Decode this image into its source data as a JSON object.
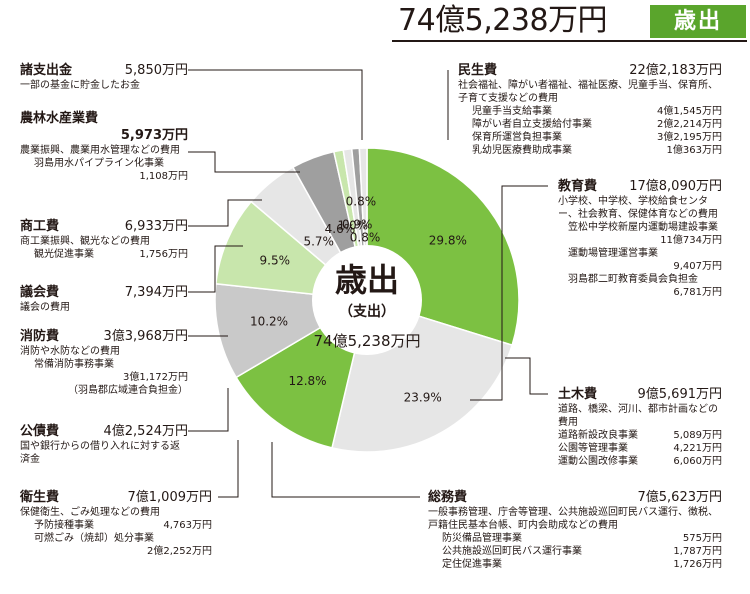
{
  "header": {
    "total": "74億5,238万円",
    "badge": "歳出"
  },
  "center": {
    "title": "歳出",
    "subtitle": "（支出）",
    "total": "74億5,238万円"
  },
  "colors": {
    "green_dark": "#7cc142",
    "green_light": "#c8e6ac",
    "gray_light": "#e6e6e6",
    "gray_mid": "#c9c9c9",
    "gray_dark": "#9f9f9f",
    "badge": "#5aa52c"
  },
  "chart_data": {
    "type": "pie",
    "slices": [
      {
        "name": "民生費",
        "percent": 29.8,
        "label": "29.8%",
        "color": "#7cc142"
      },
      {
        "name": "教育費",
        "percent": 23.9,
        "label": "23.9%",
        "color": "#e6e6e6"
      },
      {
        "name": "土木費",
        "percent": 12.8,
        "label": "12.8%",
        "color": "#7cc142"
      },
      {
        "name": "総務費",
        "percent": 10.2,
        "label": "10.2%",
        "color": "#c9c9c9"
      },
      {
        "name": "衛生費",
        "percent": 9.5,
        "label": "9.5%",
        "color": "#c8e6ac"
      },
      {
        "name": "公債費",
        "percent": 5.7,
        "label": "5.7%",
        "color": "#e6e6e6"
      },
      {
        "name": "消防費",
        "percent": 4.6,
        "label": "4.6%",
        "color": "#9f9f9f"
      },
      {
        "name": "議会費",
        "percent": 1.0,
        "label": "1.0%",
        "color": "#c8e6ac"
      },
      {
        "name": "商工費",
        "percent": 0.9,
        "label": "0.9%",
        "color": "#e6e6e6"
      },
      {
        "name": "農林水産業費",
        "percent": 0.8,
        "label": "0.8%",
        "color": "#9f9f9f"
      },
      {
        "name": "諸支出金",
        "percent": 0.8,
        "label": "0.8%",
        "color": "#e6e6e6"
      }
    ]
  },
  "left": {
    "shoshishutsu": {
      "name": "諸支出金",
      "amount": "5,850万円",
      "desc": "一部の基金に貯金したお金"
    },
    "norin": {
      "name": "農林水産業費",
      "amount": "5,973万円",
      "desc": "農業振興、農業用水管理などの費用",
      "subs": [
        {
          "name": "羽島用水パイプライン化事業",
          "amount": "1,108万円"
        }
      ]
    },
    "shoko": {
      "name": "商工費",
      "amount": "6,933万円",
      "desc": "商工業振興、観光などの費用",
      "subs": [
        {
          "name": "観光促進事業",
          "amount": "1,756万円"
        }
      ]
    },
    "gikai": {
      "name": "議会費",
      "amount": "7,394万円",
      "desc": "議会の費用"
    },
    "shobo": {
      "name": "消防費",
      "amount": "3億3,968万円",
      "desc": "消防や水防などの費用",
      "subs": [
        {
          "name": "常備消防事務事業",
          "amount": "3億1,172万円"
        },
        {
          "name": "（羽島郡広域連合負担金）",
          "amount": ""
        }
      ]
    },
    "kosai": {
      "name": "公債費",
      "amount": "4億2,524万円",
      "desc": "国や銀行からの借り入れに対する返済金"
    },
    "eisei": {
      "name": "衛生費",
      "amount": "7億1,009万円",
      "desc": "保健衛生、ごみ処理などの費用",
      "subs": [
        {
          "name": "予防接種事業",
          "amount": "4,763万円"
        },
        {
          "name": "可燃ごみ（焼却）処分事業",
          "amount": "2億2,252万円"
        }
      ]
    }
  },
  "right": {
    "minsei": {
      "name": "民生費",
      "amount": "22億2,183万円",
      "desc": "社会福祉、障がい者福祉、福祉医療、児童手当、保育所、子育て支援などの費用",
      "subs": [
        {
          "name": "児童手当支給事業",
          "amount": "4億1,545万円"
        },
        {
          "name": "障がい者自立支援給付事業",
          "amount": "2億2,214万円"
        },
        {
          "name": "保育所運営負担事業",
          "amount": "3億2,195万円"
        },
        {
          "name": "乳幼児医療費助成事業",
          "amount": "1億363万円"
        }
      ]
    },
    "kyoiku": {
      "name": "教育費",
      "amount": "17億8,090万円",
      "desc": "小学校、中学校、学校給食センター、社会教育、保健体育などの費用",
      "subs": [
        {
          "name": "笠松中学校新屋内運動場建設事業",
          "amount": "11億734万円"
        },
        {
          "name": "運動場管理運営事業",
          "amount": "9,407万円"
        },
        {
          "name": "羽島郡二町教育委員会負担金",
          "amount": "6,781万円"
        }
      ]
    },
    "doboku": {
      "name": "土木費",
      "amount": "9億5,691万円",
      "desc": "道路、橋梁、河川、都市計画などの費用",
      "subs": [
        {
          "name": "道路新設改良事業",
          "amount": "5,089万円"
        },
        {
          "name": "公園等管理事業",
          "amount": "4,221万円"
        },
        {
          "name": "運動公園改修事業",
          "amount": "6,060万円"
        }
      ]
    },
    "somu": {
      "name": "総務費",
      "amount": "7億5,623万円",
      "desc": "一般事務管理、庁舎等管理、公共施設巡回町民バス運行、徴税、戸籍住民基本台帳、町内会助成などの費用",
      "subs": [
        {
          "name": "防災備品管理事業",
          "amount": "575万円"
        },
        {
          "name": "公共施設巡回町民バス運行事業",
          "amount": "1,787万円"
        },
        {
          "name": "定住促進事業",
          "amount": "1,726万円"
        }
      ]
    }
  }
}
